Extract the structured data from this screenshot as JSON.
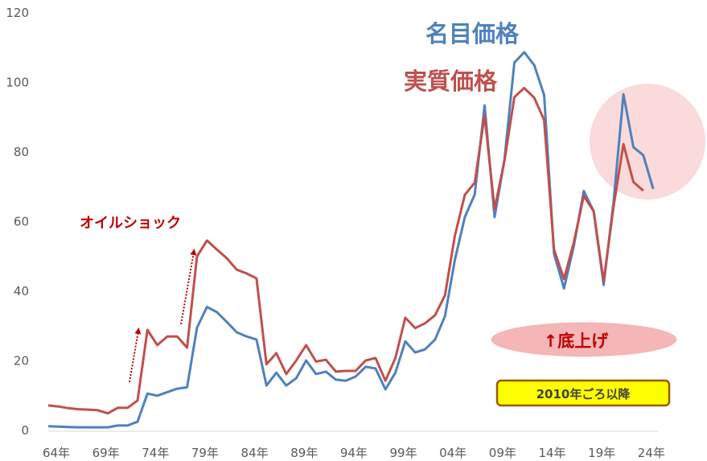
{
  "chart_data": {
    "type": "line",
    "title": "",
    "xlabel": "",
    "ylabel": "",
    "ylim": [
      0,
      120
    ],
    "yticks": [
      0,
      20,
      40,
      60,
      80,
      100,
      120
    ],
    "grid": false,
    "legend": "inline text labels",
    "x_tick_labels": [
      "64年",
      "69年",
      "74年",
      "79年",
      "84年",
      "89年",
      "94年",
      "99年",
      "04年",
      "09年",
      "14年",
      "19年",
      "24年"
    ],
    "x": [
      1964,
      1965,
      1966,
      1967,
      1968,
      1969,
      1970,
      1971,
      1972,
      1973,
      1974,
      1975,
      1976,
      1977,
      1978,
      1979,
      1980,
      1981,
      1982,
      1983,
      1984,
      1985,
      1986,
      1987,
      1988,
      1989,
      1990,
      1991,
      1992,
      1993,
      1994,
      1995,
      1996,
      1997,
      1998,
      1999,
      2000,
      2001,
      2002,
      2003,
      2004,
      2005,
      2006,
      2007,
      2008,
      2009,
      2010,
      2011,
      2012,
      2013,
      2014,
      2015,
      2016,
      2017,
      2018,
      2019,
      2020,
      2021,
      2022,
      2023,
      2024,
      2025
    ],
    "series": [
      {
        "name": "名目価格",
        "color": "#4F81BD",
        "values": [
          1.2,
          1.1,
          1.0,
          0.9,
          0.9,
          0.9,
          0.9,
          1.4,
          1.4,
          2.5,
          10.6,
          10.0,
          11.0,
          12.0,
          12.4,
          29.5,
          35.5,
          34.0,
          31.2,
          28.2,
          27.0,
          26.1,
          12.9,
          16.6,
          12.9,
          15.0,
          20.1,
          16.2,
          16.9,
          14.6,
          14.3,
          15.5,
          18.3,
          17.8,
          11.8,
          16.6,
          25.6,
          22.4,
          23.3,
          26.1,
          32.8,
          49.0,
          61.3,
          67.8,
          93.4,
          61.3,
          77.9,
          105.7,
          108.7,
          105.0,
          96.4,
          50.8,
          40.8,
          53.1,
          68.8,
          63.0,
          41.8,
          65.6,
          96.6,
          81.4,
          79.1,
          69.4
        ]
      },
      {
        "name": "実質価格",
        "color": "#C0504D",
        "values": [
          7.2,
          6.9,
          6.4,
          6.1,
          6.0,
          5.8,
          4.9,
          6.5,
          6.5,
          8.6,
          28.9,
          24.5,
          27.0,
          27.0,
          23.8,
          50.0,
          54.6,
          52.0,
          49.5,
          46.2,
          45.1,
          43.7,
          19.0,
          22.2,
          16.2,
          20.1,
          24.5,
          19.8,
          20.3,
          16.9,
          17.1,
          17.1,
          20.1,
          20.8,
          14.3,
          20.8,
          32.4,
          29.4,
          30.8,
          33.1,
          38.8,
          55.9,
          67.7,
          71.2,
          90.6,
          63.6,
          77.5,
          95.8,
          98.4,
          95.6,
          89.2,
          52.0,
          43.5,
          54.1,
          67.4,
          63.0,
          42.8,
          64.3,
          82.3,
          71.4,
          68.9
        ]
      }
    ],
    "annotations": [
      {
        "text": "名目価格",
        "color": "#4F81BD"
      },
      {
        "text": "実質価格",
        "color": "#C0504D"
      },
      {
        "text": "オイルショック",
        "color": "#C00000"
      },
      {
        "text": "↑底上げ",
        "color": "#C00000",
        "shape": "ellipse",
        "fill": "#F4B6B6"
      },
      {
        "text": "2010年ごろ以降",
        "color": "#404040",
        "shape": "rounded-box",
        "fill": "#FFFF00",
        "border": "#9C5A00"
      }
    ]
  },
  "labels": {
    "nominal": "名目価格",
    "real": "実質価格",
    "oil_shock": "オイルショック",
    "bottom_up": "↑底上げ",
    "since_2010": "2010年ごろ以降"
  },
  "colors": {
    "nominal": "#4F81BD",
    "real": "#C0504D",
    "annotation_red": "#C00000",
    "ellipse_fill": "#F4B6B6",
    "circle_fill": "#FADADA",
    "box_fill": "#FFFF00",
    "box_border": "#9C5A00",
    "axis": "#D9D9D9",
    "tick_text": "#595959"
  }
}
